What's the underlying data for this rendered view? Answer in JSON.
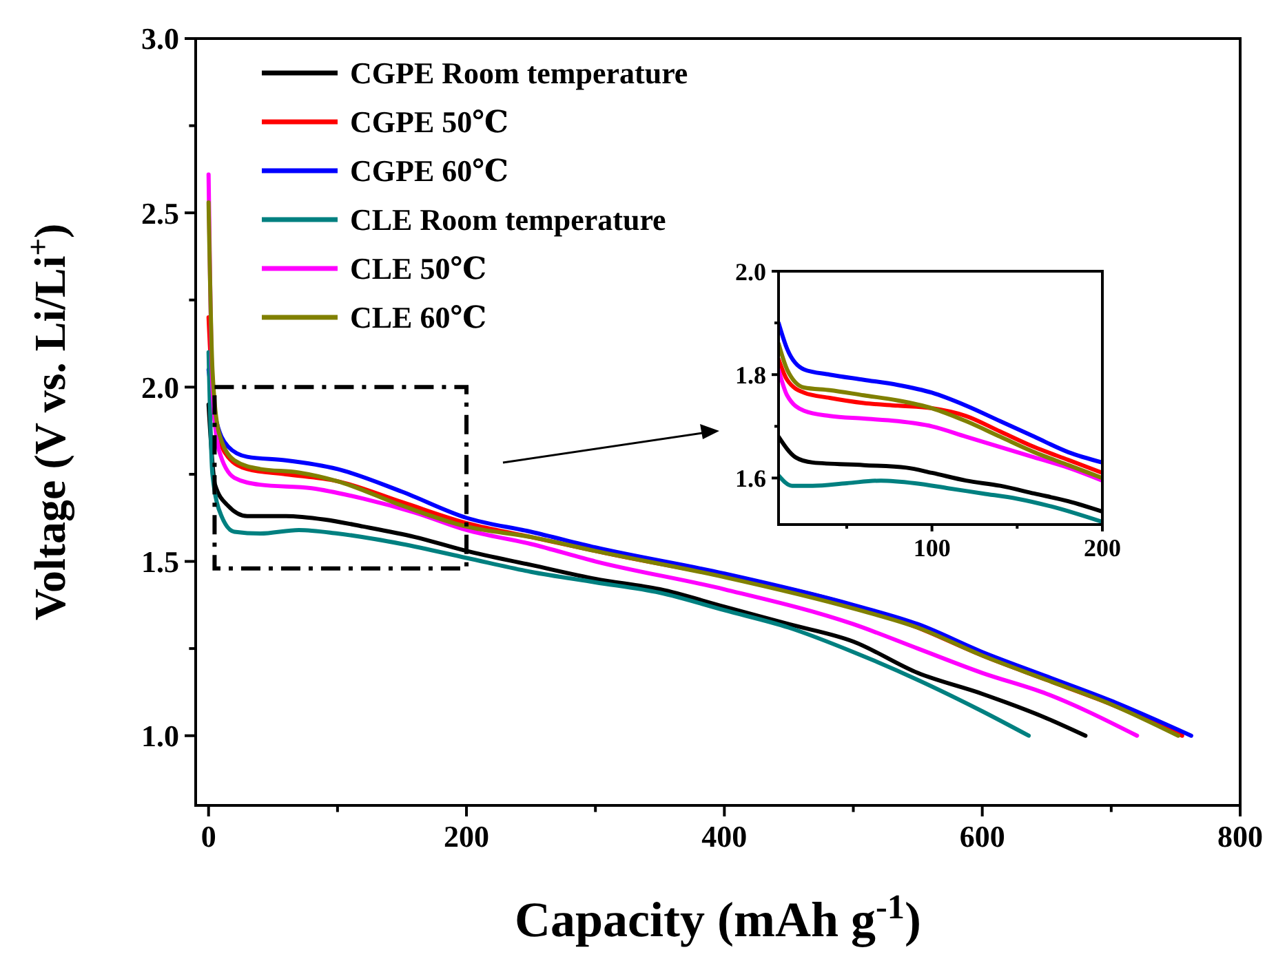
{
  "chart_data": [
    {
      "type": "line",
      "xlabel": "Capacity (mAh g$^{-1}$)",
      "ylabel": "Voltage (V vs. Li/Li$^{+}$)",
      "xlim": [
        -10,
        800
      ],
      "ylim": [
        0.8,
        3.0
      ],
      "xticks": [
        0,
        {
          "value": 100,
          "label": null
        },
        200,
        {
          "value": 300,
          "label": null
        },
        400,
        {
          "value": 500,
          "label": null
        },
        600,
        {
          "value": 700,
          "label": null
        },
        800
      ],
      "yticks": [
        {
          "value": 1,
          "label": "1.0"
        },
        {
          "value": 1.25,
          "label": null
        },
        {
          "value": 1.5,
          "label": "1.5"
        },
        {
          "value": 1.75,
          "label": null
        },
        {
          "value": 2,
          "label": "2.0"
        },
        {
          "value": 2.25,
          "label": null
        },
        {
          "value": 2.5,
          "label": "2.5"
        },
        {
          "value": 2.75,
          "label": null
        },
        {
          "value": 3,
          "label": "3.0"
        }
      ],
      "grid": false,
      "legend": "top left",
      "line_style": "solid",
      "marker": "none",
      "series": [
        {
          "name": "CGPE Room temperature",
          "color": "#000000",
          "x": [
            0,
            5,
            15,
            30,
            60,
            90,
            120,
            160,
            200,
            250,
            300,
            350,
            400,
            450,
            500,
            550,
            600,
            650,
            680
          ],
          "values": [
            1.95,
            1.72,
            1.66,
            1.63,
            1.63,
            1.62,
            1.6,
            1.57,
            1.53,
            1.49,
            1.45,
            1.42,
            1.37,
            1.32,
            1.27,
            1.18,
            1.12,
            1.05,
            1.0
          ]
        },
        {
          "name": "CGPE 50℃",
          "color": "#ff0000",
          "x": [
            0,
            5,
            15,
            30,
            60,
            100,
            150,
            200,
            250,
            300,
            400,
            500,
            550,
            600,
            650,
            700,
            755
          ],
          "values": [
            2.2,
            1.9,
            1.8,
            1.765,
            1.75,
            1.73,
            1.67,
            1.61,
            1.57,
            1.53,
            null,
            null,
            1.31,
            1.23,
            1.16,
            1.09,
            1.0
          ]
        },
        {
          "name": "CGPE 60℃",
          "color": "#0000ff",
          "x": [
            0,
            5,
            15,
            30,
            60,
            100,
            150,
            200,
            250,
            300,
            400,
            500,
            550,
            600,
            650,
            700,
            762
          ],
          "values": [
            2.05,
            1.92,
            1.83,
            1.8,
            1.79,
            1.765,
            1.7,
            1.625,
            1.585,
            1.54,
            1.465,
            1.375,
            1.32,
            1.24,
            1.17,
            1.1,
            1.0
          ]
        },
        {
          "name": "CLE Room temperature",
          "color": "#008080",
          "x": [
            0,
            3,
            10,
            20,
            40,
            70,
            100,
            150,
            200,
            250,
            300,
            350,
            400,
            450,
            500,
            550,
            600,
            636
          ],
          "values": [
            2.1,
            1.75,
            1.63,
            1.585,
            1.58,
            1.59,
            1.58,
            1.55,
            1.51,
            1.47,
            1.44,
            1.41,
            1.36,
            1.31,
            1.24,
            1.16,
            1.07,
            1.0
          ]
        },
        {
          "name": "CLE 50℃",
          "color": "#ff00ff",
          "x": [
            0,
            3,
            8,
            20,
            40,
            80,
            120,
            160,
            200,
            250,
            300,
            400,
            500,
            550,
            600,
            650,
            720
          ],
          "values": [
            2.61,
            2.0,
            1.82,
            1.74,
            1.72,
            1.71,
            1.68,
            1.64,
            1.59,
            1.55,
            1.5,
            1.42,
            1.32,
            1.25,
            1.18,
            1.12,
            1.0
          ]
        },
        {
          "name": "CLE 60℃",
          "color": "#808000",
          "x": [
            0,
            3,
            8,
            20,
            40,
            70,
            100,
            150,
            200,
            250,
            300,
            400,
            500,
            550,
            600,
            650,
            700,
            752
          ],
          "values": [
            2.53,
            2.05,
            1.87,
            1.79,
            1.765,
            1.755,
            1.73,
            1.66,
            1.6,
            1.57,
            1.53,
            1.455,
            1.365,
            1.31,
            1.23,
            1.16,
            1.09,
            1.0
          ]
        }
      ]
    },
    {
      "type": "line",
      "xlim": [
        10,
        200
      ],
      "ylim": [
        1.51,
        2.0
      ],
      "xticks": [
        {
          "value": 50,
          "label": null
        },
        100,
        {
          "value": 150,
          "label": null
        },
        200
      ],
      "yticks": [
        {
          "value": 1.6,
          "label": "1.6"
        },
        {
          "value": 1.7,
          "label": null
        },
        {
          "value": 1.8,
          "label": "1.8"
        },
        {
          "value": 1.9,
          "label": null
        },
        {
          "value": 2,
          "label": "2.0"
        }
      ],
      "grid": false,
      "legend": false,
      "line_style": "solid",
      "marker": "none",
      "series": [
        {
          "color": "#000000",
          "x": [
            10,
            20,
            30,
            60,
            85,
            100,
            120,
            140,
            160,
            180,
            200
          ],
          "values": [
            1.68,
            1.64,
            1.63,
            1.625,
            1.62,
            1.61,
            1.595,
            1.585,
            1.57,
            1.555,
            1.535
          ]
        },
        {
          "color": "#ff0000",
          "x": [
            10,
            15,
            25,
            40,
            60,
            80,
            100,
            120,
            140,
            160,
            180,
            200
          ],
          "values": [
            1.83,
            1.79,
            1.765,
            1.755,
            1.745,
            1.74,
            1.735,
            1.72,
            1.69,
            1.66,
            1.635,
            1.61
          ]
        },
        {
          "color": "#0000ff",
          "x": [
            10,
            15,
            25,
            40,
            60,
            80,
            100,
            120,
            140,
            160,
            180,
            200
          ],
          "values": [
            1.9,
            1.85,
            1.81,
            1.8,
            1.79,
            1.78,
            1.765,
            1.74,
            1.71,
            1.68,
            1.65,
            1.63
          ]
        },
        {
          "color": "#008080",
          "x": [
            10,
            18,
            30,
            50,
            70,
            90,
            110,
            130,
            150,
            170,
            200
          ],
          "values": [
            1.605,
            1.585,
            1.585,
            1.59,
            1.595,
            1.59,
            1.58,
            1.57,
            1.56,
            1.545,
            1.515
          ]
        },
        {
          "color": "#ff00ff",
          "x": [
            10,
            15,
            25,
            40,
            60,
            80,
            100,
            120,
            140,
            160,
            180,
            200
          ],
          "values": [
            1.81,
            1.76,
            1.73,
            1.72,
            1.715,
            1.71,
            1.7,
            1.68,
            1.66,
            1.64,
            1.62,
            1.595
          ]
        },
        {
          "color": "#808000",
          "x": [
            10,
            15,
            25,
            40,
            60,
            80,
            100,
            120,
            140,
            160,
            180,
            200
          ],
          "values": [
            1.86,
            1.81,
            1.775,
            1.77,
            1.76,
            1.75,
            1.735,
            1.71,
            1.68,
            1.65,
            1.625,
            1.6
          ]
        }
      ]
    }
  ]
}
